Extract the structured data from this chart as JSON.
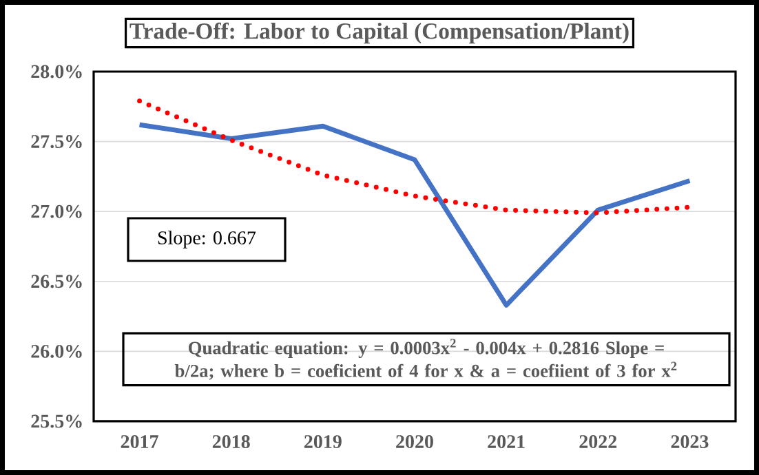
{
  "chart_data": {
    "type": "line",
    "title": "Trade-Off: Labor to Capital (Compensation/Plant)",
    "categories": [
      "2017",
      "2018",
      "2019",
      "2020",
      "2021",
      "2022",
      "2023"
    ],
    "series": [
      {
        "color": "#4472c4",
        "line_style": "solid",
        "values": [
          27.62,
          27.52,
          27.61,
          27.37,
          26.33,
          27.01,
          27.22
        ]
      },
      {
        "color": "#ff0000",
        "line_style": "dotted",
        "values": [
          27.79,
          27.51,
          27.26,
          27.11,
          27.01,
          26.99,
          27.03
        ]
      }
    ],
    "ylim": [
      25.5,
      28.0
    ],
    "yticks": [
      {
        "value": 25.5,
        "label": "25.5%"
      },
      {
        "value": 26.0,
        "label": "26.0%"
      },
      {
        "value": 26.5,
        "label": "26.5%"
      },
      {
        "value": 27.0,
        "label": "27.0%"
      },
      {
        "value": 27.5,
        "label": "27.5%"
      },
      {
        "value": 28.0,
        "label": "28.0%"
      }
    ],
    "grid": "y",
    "annotations": [
      "Slope: 0.667",
      "Quadratic equation: y = 0.0003x$^{2}$ - 0.004x + 0.2816 Slope = b/2a; where b = coeficient of 4 for x & a =  coefiient of 3 for x$^{2}$"
    ]
  }
}
